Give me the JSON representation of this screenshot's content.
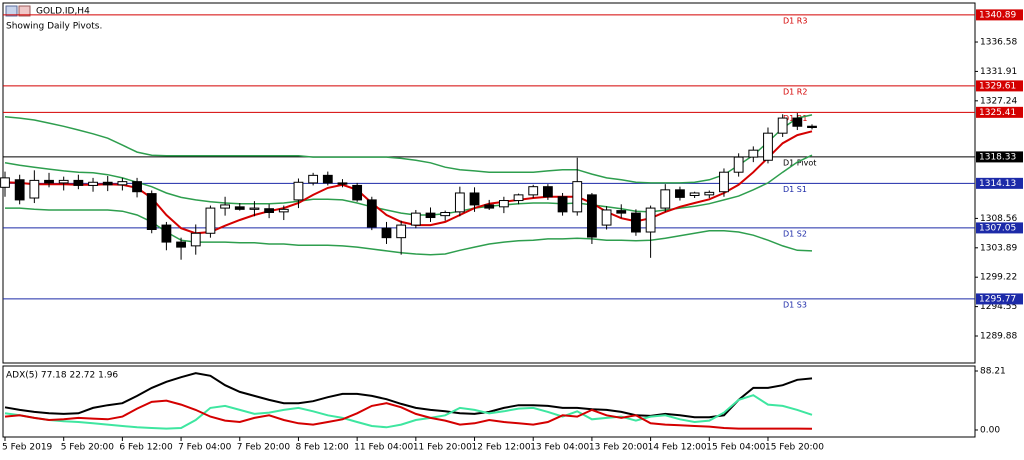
{
  "chart_data": [
    {
      "type": "candlestick",
      "title": "GOLD.ID,H4",
      "subtitle": "Showing Daily Pivots.",
      "categories": [
        "5 Feb 2019",
        null,
        null,
        null,
        "5 Feb 20:00",
        null,
        null,
        null,
        "6 Feb 12:00",
        null,
        null,
        null,
        "7 Feb 04:00",
        null,
        null,
        null,
        "7 Feb 20:00",
        null,
        null,
        null,
        "8 Feb 12:00",
        null,
        null,
        null,
        "11 Feb 04:00",
        null,
        null,
        null,
        "11 Feb 20:00",
        null,
        null,
        null,
        "12 Feb 12:00",
        null,
        null,
        null,
        "13 Feb 04:00",
        null,
        null,
        null,
        "13 Feb 20:00",
        null,
        null,
        null,
        "14 Feb 12:00",
        null,
        null,
        null,
        "15 Feb 04:00",
        null,
        null,
        null,
        "15 Feb 20:00",
        null,
        null,
        null
      ],
      "open": [
        1313.5,
        1314.7,
        1311.8,
        1314.6,
        1314.2,
        1314.6,
        1313.8,
        1314.3,
        1313.9,
        1314.4,
        1312.5,
        1307.5,
        1304.8,
        1304.2,
        1306.2,
        1310.2,
        1310.4,
        1310.0,
        1310.1,
        1309.6,
        1311.5,
        1314.2,
        1315.4,
        1314.2,
        1313.8,
        1311.5,
        1307.0,
        1305.5,
        1307.5,
        1309.4,
        1309.0,
        1309.6,
        1312.6,
        1310.7,
        1310.4,
        1311.4,
        1312.3,
        1313.6,
        1312.0,
        1309.6,
        1312.3,
        1307.5,
        1309.8,
        1309.4,
        1306.4,
        1310.2,
        1313.1,
        1312.2,
        1312.3,
        1312.8,
        1315.9,
        1318.3,
        1317.8,
        1322.1,
        1324.5,
        1323.2
      ],
      "high": [
        1316.0,
        1315.5,
        1316.2,
        1315.8,
        1315.2,
        1315.5,
        1315.0,
        1315.3,
        1315.0,
        1315.0,
        1313.0,
        1308.0,
        1305.5,
        1307.6,
        1310.6,
        1312.0,
        1311.0,
        1311.3,
        1310.8,
        1310.6,
        1314.9,
        1315.8,
        1316.0,
        1314.8,
        1314.2,
        1312.0,
        1308.0,
        1308.2,
        1309.9,
        1310.3,
        1309.8,
        1313.6,
        1313.5,
        1311.5,
        1312.0,
        1312.5,
        1313.9,
        1314.0,
        1312.6,
        1318.2,
        1312.6,
        1310.5,
        1310.8,
        1310.0,
        1310.6,
        1314.0,
        1313.6,
        1312.8,
        1313.0,
        1316.5,
        1318.9,
        1320.0,
        1323.0,
        1325.1,
        1325.3,
        1323.5
      ],
      "low": [
        1312.0,
        1310.8,
        1311.0,
        1313.5,
        1313.0,
        1313.2,
        1312.8,
        1312.9,
        1313.0,
        1311.9,
        1306.2,
        1303.5,
        1302.0,
        1302.8,
        1305.5,
        1309.0,
        1309.8,
        1308.9,
        1308.6,
        1308.3,
        1310.2,
        1313.8,
        1313.8,
        1313.5,
        1311.2,
        1306.7,
        1304.5,
        1302.8,
        1307.0,
        1308.0,
        1308.2,
        1308.9,
        1309.6,
        1309.9,
        1309.4,
        1310.8,
        1311.8,
        1311.5,
        1309.0,
        1309.0,
        1304.5,
        1306.8,
        1308.6,
        1305.8,
        1302.3,
        1309.6,
        1311.4,
        1311.8,
        1311.8,
        1312.0,
        1315.2,
        1317.5,
        1317.3,
        1321.5,
        1322.6,
        1322.7
      ],
      "close": [
        1315.0,
        1311.5,
        1314.6,
        1314.2,
        1314.6,
        1313.8,
        1314.3,
        1313.9,
        1314.4,
        1312.8,
        1306.8,
        1304.8,
        1304.0,
        1306.2,
        1310.2,
        1310.7,
        1310.0,
        1310.2,
        1309.5,
        1310.0,
        1314.3,
        1315.4,
        1314.2,
        1314.0,
        1311.5,
        1307.2,
        1305.5,
        1307.5,
        1309.4,
        1308.7,
        1309.5,
        1312.6,
        1310.7,
        1310.2,
        1311.4,
        1312.3,
        1313.6,
        1312.0,
        1309.6,
        1314.4,
        1305.6,
        1309.9,
        1309.4,
        1306.4,
        1310.2,
        1313.1,
        1311.9,
        1312.6,
        1312.7,
        1315.9,
        1318.3,
        1319.4,
        1322.1,
        1324.5,
        1323.2,
        1323.0
      ],
      "up_color": "#ffffff",
      "down_color": "#000000",
      "wick_color": "#000000",
      "overlays": [
        {
          "color": "#2e9e4e",
          "values": [
            1324.7,
            1324.5,
            1324.2,
            1323.7,
            1323.2,
            1322.6,
            1322.0,
            1321.3,
            1320.2,
            1319.1,
            1318.6,
            1318.5,
            1318.5,
            1318.5,
            1318.5,
            1318.5,
            1318.5,
            1318.5,
            1318.5,
            1318.5,
            1318.5,
            1318.3,
            1318.3,
            1318.3,
            1318.3,
            1318.3,
            1318.3,
            1318.1,
            1317.8,
            1317.4,
            1316.7,
            1316.3,
            1316.1,
            1315.9,
            1315.9,
            1315.9,
            1315.9,
            1316.1,
            1316.3,
            1316.3,
            1315.6,
            1315.0,
            1314.7,
            1314.3,
            1314.2,
            1314.2,
            1314.2,
            1314.3,
            1314.7,
            1315.5,
            1317.0,
            1318.6,
            1320.7,
            1322.9,
            1324.5,
            1325.0
          ]
        },
        {
          "color": "#2e9e4e",
          "values": [
            1317.4,
            1317.0,
            1316.7,
            1316.4,
            1316.1,
            1315.9,
            1315.8,
            1315.5,
            1315.0,
            1314.3,
            1313.6,
            1312.6,
            1311.9,
            1311.5,
            1311.2,
            1311.0,
            1310.9,
            1310.9,
            1310.9,
            1311.0,
            1311.3,
            1311.6,
            1311.6,
            1311.5,
            1311.0,
            1310.4,
            1309.9,
            1309.4,
            1309.1,
            1309.1,
            1309.3,
            1309.7,
            1310.2,
            1310.5,
            1310.7,
            1310.9,
            1311.0,
            1311.0,
            1310.9,
            1311.0,
            1310.7,
            1310.4,
            1310.1,
            1309.7,
            1309.6,
            1309.9,
            1310.2,
            1310.5,
            1310.9,
            1311.5,
            1312.1,
            1313.1,
            1314.2,
            1315.9,
            1317.5,
            1318.6
          ]
        },
        {
          "color": "#2e9e4e",
          "values": [
            1310.2,
            1310.2,
            1310.0,
            1309.9,
            1309.9,
            1309.9,
            1309.9,
            1309.9,
            1309.7,
            1309.1,
            1308.0,
            1306.4,
            1305.1,
            1304.8,
            1304.8,
            1304.8,
            1304.7,
            1304.7,
            1304.5,
            1304.5,
            1304.3,
            1304.3,
            1304.3,
            1304.2,
            1304.0,
            1303.7,
            1303.4,
            1303.1,
            1302.9,
            1302.8,
            1302.9,
            1303.5,
            1304.0,
            1304.5,
            1304.8,
            1305.0,
            1305.1,
            1305.3,
            1305.3,
            1305.4,
            1305.3,
            1305.1,
            1305.1,
            1305.0,
            1305.1,
            1305.4,
            1305.8,
            1306.2,
            1306.6,
            1306.6,
            1306.4,
            1305.9,
            1305.1,
            1304.2,
            1303.5,
            1303.4
          ]
        },
        {
          "color": "#d40000",
          "values": [
            1314.3,
            1314.2,
            1314.0,
            1314.0,
            1314.0,
            1313.9,
            1313.9,
            1314.0,
            1313.9,
            1313.4,
            1311.8,
            1309.1,
            1307.0,
            1306.2,
            1306.4,
            1307.4,
            1308.3,
            1309.1,
            1309.7,
            1310.2,
            1311.0,
            1312.3,
            1313.4,
            1313.9,
            1313.1,
            1311.0,
            1309.1,
            1308.0,
            1307.5,
            1307.5,
            1308.0,
            1309.1,
            1310.2,
            1310.9,
            1311.2,
            1311.5,
            1311.8,
            1312.0,
            1312.0,
            1312.0,
            1311.0,
            1309.6,
            1308.6,
            1308.1,
            1308.6,
            1309.6,
            1310.4,
            1311.0,
            1311.6,
            1312.6,
            1313.9,
            1315.9,
            1318.2,
            1320.5,
            1321.8,
            1322.4
          ]
        }
      ],
      "levels": [
        {
          "label": "D1 R3",
          "value": 1340.89,
          "color": "#d40000"
        },
        {
          "label": "D1 R2",
          "value": 1329.61,
          "color": "#d40000"
        },
        {
          "label": "D1 R1",
          "value": 1325.41,
          "color": "#d40000"
        },
        {
          "label": "D1 Pivot",
          "value": 1318.33,
          "color": "#000000"
        },
        {
          "label": "D1 S1",
          "value": 1314.13,
          "color": "#1c2aa8"
        },
        {
          "label": "D1 S2",
          "value": 1307.05,
          "color": "#1c2aa8"
        },
        {
          "label": "D1 S3",
          "value": 1295.77,
          "color": "#1c2aa8"
        }
      ],
      "ylim": [
        1285.75,
        1342.62
      ],
      "yticks": [
        1336.58,
        1331.91,
        1327.24,
        1308.56,
        1303.89,
        1299.22,
        1294.55,
        1289.88
      ]
    },
    {
      "type": "line",
      "title": "ADX(5) 77.18 22.72 1.96",
      "series": [
        {
          "color": "#000000",
          "values": [
            34,
            30,
            27,
            25,
            24,
            25,
            33,
            37,
            40,
            51,
            63,
            72,
            79,
            85,
            81,
            67,
            57,
            51,
            45,
            40,
            40,
            43,
            49,
            54,
            54,
            51,
            46,
            39,
            33,
            30,
            28,
            25,
            24,
            27,
            33,
            37,
            37,
            36,
            33,
            33,
            31,
            30,
            27,
            22,
            21,
            24,
            22,
            19,
            19,
            22,
            45,
            63,
            63,
            67,
            75,
            77.18
          ]
        },
        {
          "color": "#3ee6a0",
          "values": [
            25,
            22,
            18,
            15,
            13,
            12,
            10,
            8,
            6,
            4,
            3,
            2,
            3,
            15,
            33,
            36,
            30,
            24,
            26,
            30,
            33,
            28,
            22,
            18,
            12,
            6,
            4,
            8,
            15,
            18,
            22,
            33,
            30,
            25,
            28,
            32,
            33,
            27,
            20,
            28,
            16,
            18,
            20,
            14,
            20,
            22,
            16,
            12,
            14,
            26,
            45,
            52,
            38,
            36,
            30,
            22.72
          ]
        },
        {
          "color": "#d40000",
          "values": [
            20,
            22,
            18,
            15,
            16,
            18,
            17,
            16,
            20,
            32,
            42,
            44,
            38,
            30,
            20,
            14,
            12,
            18,
            22,
            15,
            10,
            8,
            12,
            16,
            25,
            36,
            40,
            34,
            24,
            18,
            14,
            8,
            10,
            15,
            12,
            10,
            8,
            12,
            22,
            20,
            30,
            22,
            18,
            22,
            10,
            8,
            7,
            6,
            5,
            3,
            2,
            2,
            2,
            2,
            2,
            1.96
          ]
        }
      ],
      "ylim": [
        -9,
        95.7
      ],
      "yticks": [
        88.21,
        {
          "value": 0,
          "label": "0.00"
        }
      ]
    }
  ]
}
